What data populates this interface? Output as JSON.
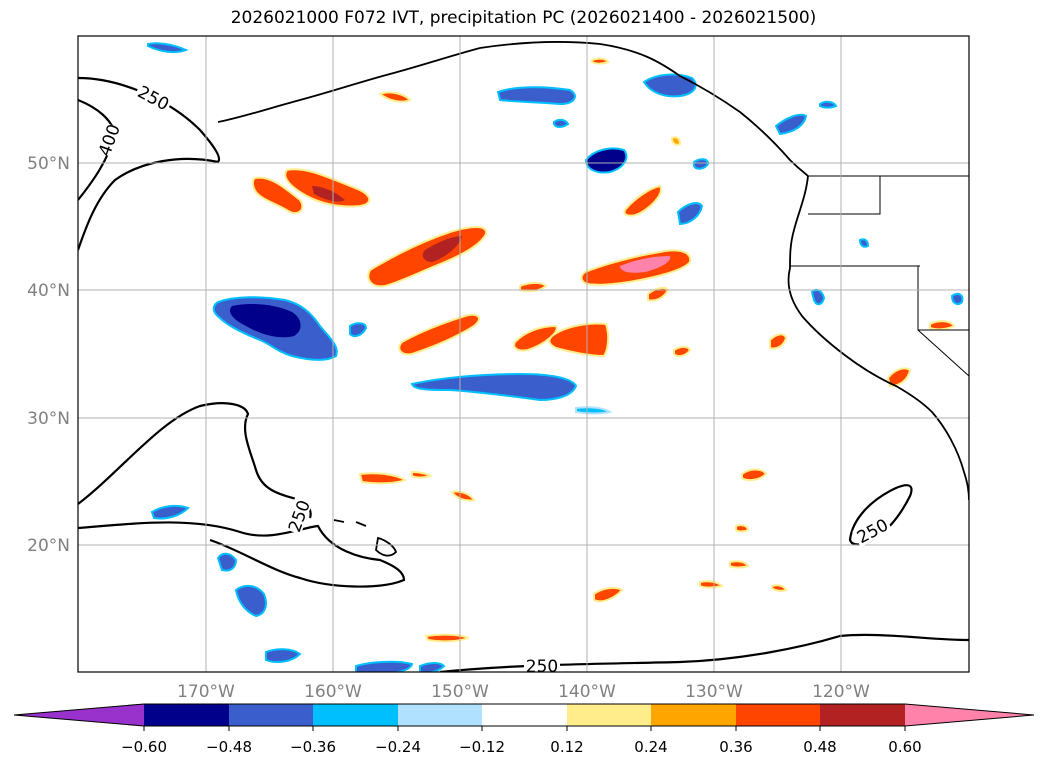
{
  "title": "2026021000 F072 IVT, precipitation PC (2026021400 - 2026021500)",
  "map": {
    "lat_labels": [
      "50°N",
      "40°N",
      "30°N",
      "20°N"
    ],
    "lon_labels": [
      "170°W",
      "160°W",
      "150°W",
      "140°W",
      "130°W",
      "120°W"
    ],
    "contour_labels": [
      "250",
      "400",
      "250",
      "250",
      "250"
    ]
  },
  "colorbar": {
    "ticks": [
      "−0.60",
      "−0.48",
      "−0.36",
      "−0.24",
      "−0.12",
      "0.12",
      "0.24",
      "0.36",
      "0.48",
      "0.60"
    ],
    "colors": [
      "#9932cc",
      "#00008b",
      "#3a5fcd",
      "#00bfff",
      "#b0e2ff",
      "#ffffff",
      "#ffec8b",
      "#ffa500",
      "#ff4500",
      "#b22222",
      "#ff82ab"
    ]
  },
  "colors": {
    "grid": "#b0b0b0",
    "axis_label": "#808080",
    "contour": "#000000"
  }
}
